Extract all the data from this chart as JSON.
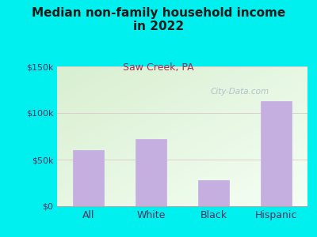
{
  "title": "Median non-family household income\nin 2022",
  "subtitle": "Saw Creek, PA",
  "categories": [
    "All",
    "White",
    "Black",
    "Hispanic"
  ],
  "values": [
    60000,
    72000,
    28000,
    113000
  ],
  "bar_color": "#c5aee0",
  "background_color": "#00efef",
  "plot_bg_topleft": "#d8efd0",
  "plot_bg_bottomright": "#f5fff5",
  "title_color": "#1a1a1a",
  "subtitle_color": "#a03050",
  "tick_label_color": "#5a3060",
  "axis_label_color": "#5a3060",
  "grid_color": "#ddc8cc",
  "ylim": [
    0,
    150000
  ],
  "yticks": [
    0,
    50000,
    100000,
    150000
  ],
  "ytick_labels": [
    "$0",
    "$50k",
    "$100k",
    "$150k"
  ],
  "watermark": "City-Data.com",
  "watermark_color": "#a8b8c8"
}
